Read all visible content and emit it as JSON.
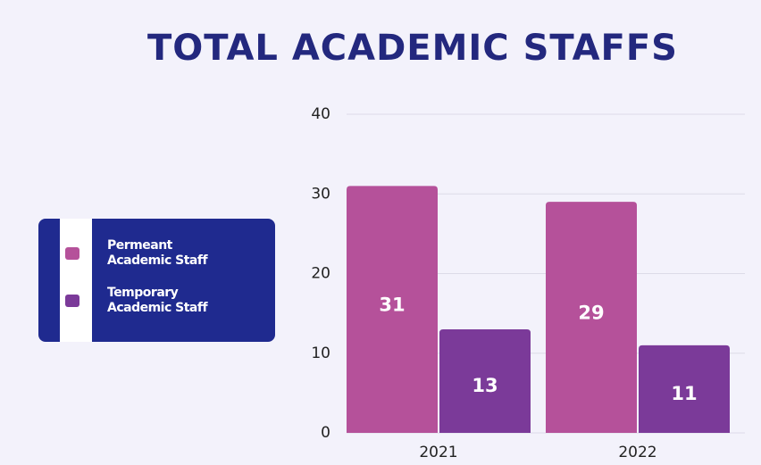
{
  "chart_data": {
    "type": "bar",
    "title": "TOTAL ACADEMIC STAFFS",
    "categories": [
      "2021",
      "2022"
    ],
    "series": [
      {
        "name": "Permeant Academic Staff",
        "color": "#b5519a",
        "values": [
          31,
          29
        ]
      },
      {
        "name": "Temporary Academic Staff",
        "color": "#7b3a99",
        "values": [
          13,
          11
        ]
      }
    ],
    "ylim": [
      0,
      40
    ],
    "yticks": [
      0,
      10,
      20,
      30,
      40
    ],
    "grid": true,
    "legend": "left"
  }
}
